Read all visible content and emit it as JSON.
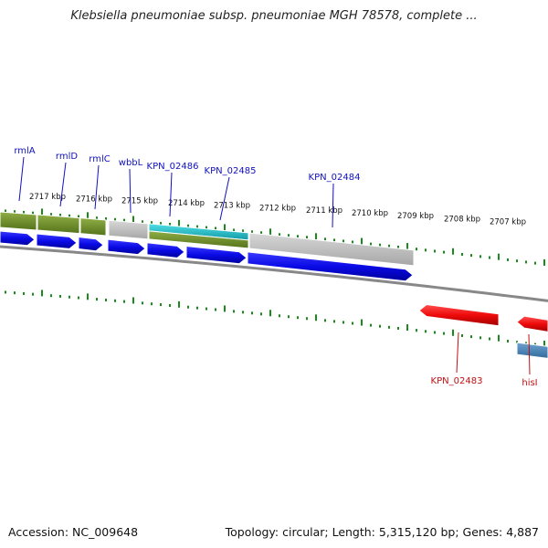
{
  "title": "Klebsiella pneumoniae subsp. pneumoniae MGH 78578, complete ...",
  "colors": {
    "forward_gene": "#0a0ae6",
    "reverse_gene": "#ee0a0a",
    "tick": "#1a8a1a",
    "band_olive": "#6b8e23",
    "band_cyan": "#1fbfc8",
    "band_grey": "#b8b8b8",
    "band_steel": "#4682b4",
    "backbone": "#888888",
    "forward_label": "#1010c0",
    "reverse_label": "#c01010"
  },
  "scale_labels": [
    "2717 kbp",
    "2716 kbp",
    "2715 kbp",
    "2714 kbp",
    "2713 kbp",
    "2712 kbp",
    "2711 kbp",
    "2710 kbp",
    "2709 kbp",
    "2708 kbp",
    "2707 kbp"
  ],
  "forward_genes": [
    "rmlA",
    "rmlD",
    "rmlC",
    "wbbL",
    "KPN_02486",
    "KPN_02485",
    "KPN_02484"
  ],
  "reverse_genes": [
    "KPN_02483",
    "hisI"
  ],
  "footer": {
    "accession": "Accession: NC_009648",
    "summary": "Topology: circular; Length: 5,315,120 bp; Genes: 4,887"
  }
}
